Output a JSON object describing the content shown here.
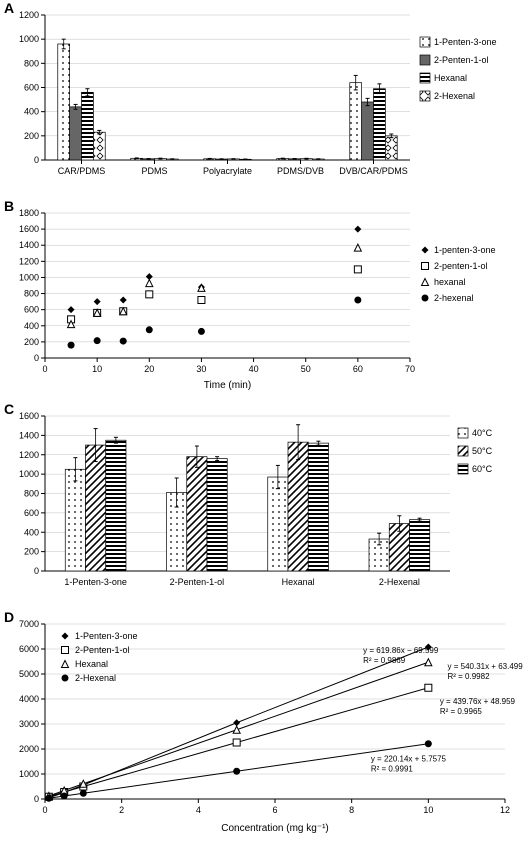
{
  "panelA": {
    "label": "A",
    "type": "bar",
    "ylim": [
      0,
      1200
    ],
    "ytick_step": 200,
    "categories": [
      "CAR/PDMS",
      "PDMS",
      "Polyacrylate",
      "PDMS/DVB",
      "DVB/CAR/PDMS"
    ],
    "series": [
      {
        "name": "1-Penten-3-one",
        "values": [
          960,
          14,
          10,
          12,
          640
        ],
        "err": [
          40,
          3,
          3,
          3,
          60
        ]
      },
      {
        "name": "2-Penten-1-ol",
        "values": [
          440,
          10,
          8,
          10,
          480
        ],
        "err": [
          20,
          2,
          2,
          2,
          30
        ]
      },
      {
        "name": "Hexanal",
        "values": [
          560,
          12,
          9,
          11,
          590
        ],
        "err": [
          30,
          3,
          2,
          3,
          40
        ]
      },
      {
        "name": "2-Hexenal",
        "values": [
          230,
          8,
          6,
          8,
          200
        ],
        "err": [
          15,
          2,
          2,
          2,
          15
        ]
      }
    ],
    "patterns": [
      "dots",
      "dark",
      "hstripes",
      "diamonds"
    ],
    "bg": "#ffffff",
    "axis_color": "#000000",
    "grid_color": "#c0c0c0",
    "label_fontsize": 9,
    "tick_fontsize": 9
  },
  "panelB": {
    "label": "B",
    "type": "scatter",
    "ylim": [
      0,
      1800
    ],
    "ytick_step": 200,
    "xlim": [
      0,
      70
    ],
    "xtick_step": 10,
    "xlabel": "Time (min)",
    "series": [
      {
        "name": "1-penten-3-one",
        "marker": "diamond-filled",
        "x": [
          5,
          10,
          15,
          20,
          30,
          60
        ],
        "y": [
          600,
          700,
          720,
          1010,
          880,
          1600
        ]
      },
      {
        "name": "2-penten-1-ol",
        "marker": "square-open",
        "x": [
          5,
          10,
          15,
          20,
          30,
          60
        ],
        "y": [
          480,
          560,
          580,
          790,
          720,
          1100
        ]
      },
      {
        "name": "hexanal",
        "marker": "triangle-open",
        "x": [
          5,
          10,
          15,
          20,
          30,
          60
        ],
        "y": [
          420,
          560,
          580,
          930,
          870,
          1370
        ]
      },
      {
        "name": "2-hexenal",
        "marker": "circle-filled",
        "x": [
          5,
          10,
          15,
          20,
          30,
          60
        ],
        "y": [
          160,
          215,
          210,
          350,
          330,
          720
        ]
      }
    ],
    "bg": "#ffffff",
    "axis_color": "#000000",
    "grid_color": "#c0c0c0",
    "label_fontsize": 10,
    "tick_fontsize": 9
  },
  "panelC": {
    "label": "C",
    "type": "bar",
    "ylim": [
      0,
      1600
    ],
    "ytick_step": 200,
    "categories": [
      "1-Penten-3-one",
      "2-Penten-1-ol",
      "Hexanal",
      "2-Hexenal"
    ],
    "series": [
      {
        "name": "40°C",
        "values": [
          1050,
          810,
          970,
          330
        ],
        "err": [
          120,
          150,
          120,
          60
        ]
      },
      {
        "name": "50°C",
        "values": [
          1300,
          1180,
          1330,
          490
        ],
        "err": [
          170,
          110,
          180,
          80
        ]
      },
      {
        "name": "60°C",
        "values": [
          1350,
          1160,
          1320,
          530
        ],
        "err": [
          30,
          20,
          20,
          15
        ]
      }
    ],
    "patterns": [
      "dots",
      "diag",
      "hstripes"
    ],
    "bg": "#ffffff",
    "axis_color": "#000000",
    "grid_color": "#c0c0c0",
    "label_fontsize": 9,
    "tick_fontsize": 9
  },
  "panelD": {
    "label": "D",
    "type": "scatter-line",
    "ylim": [
      0,
      7000
    ],
    "ytick_step": 1000,
    "xlim": [
      0,
      12
    ],
    "xtick_step": 2,
    "xlabel": "Concentration (mg kg⁻¹)",
    "series": [
      {
        "name": "1-Penten-3-one",
        "marker": "diamond-filled",
        "x": [
          0.1,
          0.5,
          1,
          5,
          10
        ],
        "y": [
          50,
          260,
          560,
          3050,
          6080
        ],
        "eq": "y = 619.86x − 69.599",
        "r2": "R² = 0.9869"
      },
      {
        "name": "2-Penten-1-ol",
        "marker": "square-open",
        "x": [
          0.1,
          0.5,
          1,
          5,
          10
        ],
        "y": [
          90,
          280,
          500,
          2260,
          4450
        ],
        "eq": "y = 439.76x + 48.959",
        "r2": "R² = 0.9965"
      },
      {
        "name": "Hexanal",
        "marker": "triangle-open",
        "x": [
          0.1,
          0.5,
          1,
          5,
          10
        ],
        "y": [
          120,
          340,
          610,
          2770,
          5470
        ],
        "eq": "y = 540.31x + 63.499",
        "r2": "R² = 0.9982"
      },
      {
        "name": "2-Hexenal",
        "marker": "circle-filled",
        "x": [
          0.1,
          0.5,
          1,
          5,
          10
        ],
        "y": [
          30,
          120,
          230,
          1110,
          2210
        ],
        "eq": "y = 220.14x + 5.7575",
        "r2": "R² = 0.9991"
      }
    ],
    "bg": "#ffffff",
    "axis_color": "#000000",
    "grid_color": "#c0c0c0",
    "label_fontsize": 10,
    "tick_fontsize": 9
  }
}
